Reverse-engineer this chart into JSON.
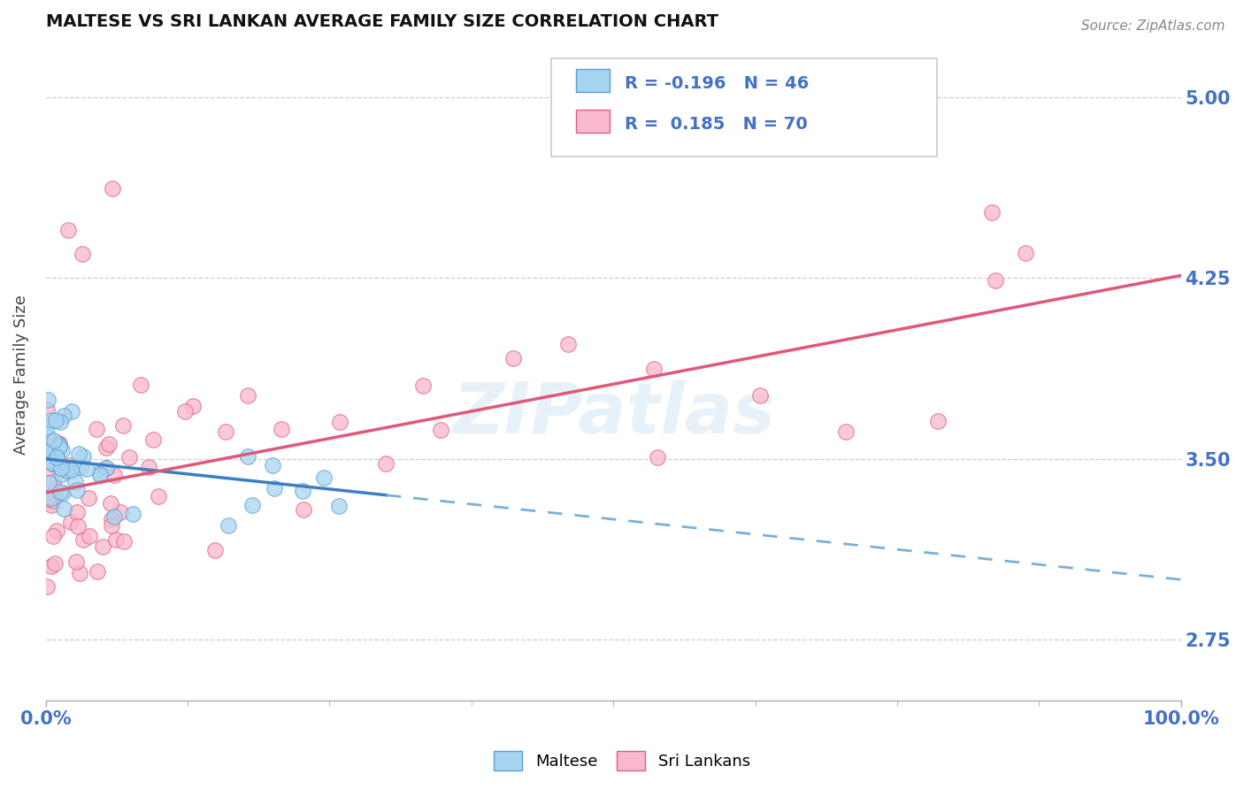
{
  "title": "MALTESE VS SRI LANKAN AVERAGE FAMILY SIZE CORRELATION CHART",
  "source": "Source: ZipAtlas.com",
  "ylabel": "Average Family Size",
  "xlim": [
    0.0,
    100.0
  ],
  "ylim": [
    2.5,
    5.2
  ],
  "yticks": [
    2.75,
    3.5,
    4.25,
    5.0
  ],
  "maltese_color": "#a8d4f0",
  "maltese_edge": "#5a9fd4",
  "srilanka_color": "#f9b8cb",
  "srilanka_edge": "#e06080",
  "trend_blue_solid": "#3a7fc1",
  "trend_blue_dash": "#7ab0d8",
  "trend_pink": "#e05878",
  "axis_color": "#4472c4",
  "title_color": "#111111",
  "background_color": "#ffffff",
  "watermark": "ZIPatlas",
  "source_text": "Source: ZipAtlas.com",
  "maltese_trend_intercept": 3.5,
  "maltese_trend_slope": -0.005,
  "srilanka_trend_intercept": 3.36,
  "srilanka_trend_slope": 0.009,
  "solid_cutoff": 30.0
}
